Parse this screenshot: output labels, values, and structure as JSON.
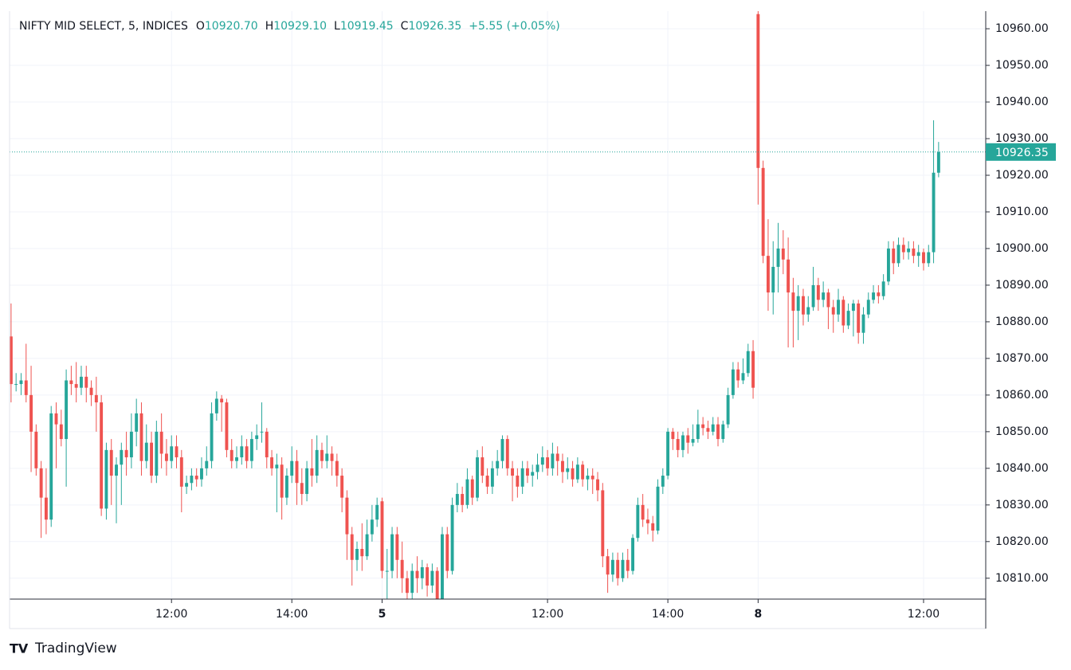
{
  "chart_data": {
    "type": "candlestick",
    "symbol": "NIFTY MID SELECT, 5, INDICES",
    "legend_items": [
      {
        "label": "O",
        "value": "10920.70"
      },
      {
        "label": "H",
        "value": "10929.10"
      },
      {
        "label": "L",
        "value": "10919.45"
      },
      {
        "label": "C",
        "value": "10926.35"
      }
    ],
    "change": "+5.55 (+0.05%)",
    "last_price_label": "10926.35",
    "brand": "TradingView",
    "up_color": "#26a69a",
    "down_color": "#ef5350",
    "xlim": [
      -0.3,
      194.4
    ],
    "xticks": [
      {
        "value": 32,
        "label": "12:00"
      },
      {
        "value": 56,
        "label": "14:00"
      },
      {
        "value": 74,
        "label": "5"
      },
      {
        "value": 107,
        "label": "12:00"
      },
      {
        "value": 131,
        "label": "14:00"
      },
      {
        "value": 149,
        "label": "8"
      },
      {
        "value": 182,
        "label": "12:00"
      }
    ],
    "ylim": [
      10804.3,
      10964.8
    ],
    "yticks": [
      {
        "value": 10810,
        "label": "10810.00"
      },
      {
        "value": 10820,
        "label": "10820.00"
      },
      {
        "value": 10830,
        "label": "10830.00"
      },
      {
        "value": 10840,
        "label": "10840.00"
      },
      {
        "value": 10850,
        "label": "10850.00"
      },
      {
        "value": 10860,
        "label": "10860.00"
      },
      {
        "value": 10870,
        "label": "10870.00"
      },
      {
        "value": 10880,
        "label": "10880.00"
      },
      {
        "value": 10890,
        "label": "10890.00"
      },
      {
        "value": 10900,
        "label": "10900.00"
      },
      {
        "value": 10910,
        "label": "10910.00"
      },
      {
        "value": 10920,
        "label": "10920.00"
      },
      {
        "value": 10930,
        "label": "10930.00"
      },
      {
        "value": 10940,
        "label": "10940.00"
      },
      {
        "value": 10950,
        "label": "10950.00"
      },
      {
        "value": 10960,
        "label": "10960.00"
      }
    ],
    "grid": true,
    "candles": [
      [
        10876,
        10885,
        10858,
        10863
      ],
      [
        10863,
        10866,
        10861,
        10863
      ],
      [
        10863,
        10866,
        10860,
        10864
      ],
      [
        10864,
        10874,
        10858,
        10860
      ],
      [
        10860,
        10868,
        10839,
        10850
      ],
      [
        10850,
        10852,
        10838,
        10840
      ],
      [
        10840,
        10842,
        10821,
        10832
      ],
      [
        10832,
        10840,
        10822,
        10826
      ],
      [
        10826,
        10857,
        10824,
        10855
      ],
      [
        10855,
        10858,
        10840,
        10852
      ],
      [
        10852,
        10856,
        10846,
        10848
      ],
      [
        10848,
        10867,
        10835,
        10864
      ],
      [
        10864,
        10868,
        10860,
        10863
      ],
      [
        10863,
        10869,
        10858,
        10862
      ],
      [
        10862,
        10868,
        10860,
        10865
      ],
      [
        10865,
        10868,
        10858,
        10862
      ],
      [
        10862,
        10864,
        10857,
        10860
      ],
      [
        10860,
        10865,
        10850,
        10858
      ],
      [
        10858,
        10860,
        10827,
        10829
      ],
      [
        10829,
        10847,
        10826,
        10845
      ],
      [
        10845,
        10848,
        10830,
        10838
      ],
      [
        10838,
        10843,
        10825,
        10841
      ],
      [
        10841,
        10847,
        10830,
        10845
      ],
      [
        10845,
        10850,
        10838,
        10843
      ],
      [
        10843,
        10855,
        10840,
        10850
      ],
      [
        10850,
        10859,
        10846,
        10855
      ],
      [
        10855,
        10858,
        10838,
        10842
      ],
      [
        10842,
        10852,
        10840,
        10847
      ],
      [
        10847,
        10850,
        10836,
        10838
      ],
      [
        10838,
        10853,
        10836,
        10850
      ],
      [
        10850,
        10855,
        10840,
        10844
      ],
      [
        10844,
        10848,
        10838,
        10842
      ],
      [
        10842,
        10849,
        10840,
        10846
      ],
      [
        10846,
        10849,
        10840,
        10843
      ],
      [
        10843,
        10845,
        10828,
        10835
      ],
      [
        10835,
        10838,
        10833,
        10836
      ],
      [
        10836,
        10840,
        10834,
        10838
      ],
      [
        10838,
        10840,
        10835,
        10837
      ],
      [
        10837,
        10843,
        10835,
        10840
      ],
      [
        10840,
        10846,
        10838,
        10842
      ],
      [
        10842,
        10858,
        10840,
        10855
      ],
      [
        10855,
        10861,
        10853,
        10859
      ],
      [
        10859,
        10860,
        10850,
        10858
      ],
      [
        10858,
        10859,
        10843,
        10845
      ],
      [
        10845,
        10848,
        10840,
        10842
      ],
      [
        10842,
        10846,
        10840,
        10843
      ],
      [
        10843,
        10849,
        10841,
        10846
      ],
      [
        10846,
        10848,
        10840,
        10842
      ],
      [
        10842,
        10850,
        10840,
        10848
      ],
      [
        10848,
        10852,
        10845,
        10849
      ],
      [
        10850,
        10858,
        10847,
        10850
      ],
      [
        10850,
        10851,
        10840,
        10843
      ],
      [
        10843,
        10845,
        10838,
        10840
      ],
      [
        10840,
        10844,
        10828,
        10841
      ],
      [
        10841,
        10843,
        10826,
        10832
      ],
      [
        10832,
        10840,
        10830,
        10838
      ],
      [
        10838,
        10846,
        10836,
        10842
      ],
      [
        10842,
        10845,
        10830,
        10836
      ],
      [
        10836,
        10840,
        10830,
        10833
      ],
      [
        10833,
        10842,
        10831,
        10840
      ],
      [
        10840,
        10848,
        10835,
        10838
      ],
      [
        10838,
        10849,
        10836,
        10845
      ],
      [
        10845,
        10847,
        10840,
        10842
      ],
      [
        10842,
        10849,
        10840,
        10844
      ],
      [
        10844,
        10846,
        10838,
        10842
      ],
      [
        10842,
        10844,
        10835,
        10838
      ],
      [
        10838,
        10840,
        10828,
        10832
      ],
      [
        10832,
        10834,
        10815,
        10822
      ],
      [
        10822,
        10824,
        10808,
        10815
      ],
      [
        10815,
        10820,
        10812,
        10818
      ],
      [
        10818,
        10825,
        10812,
        10816
      ],
      [
        10816,
        10826,
        10815,
        10822
      ],
      [
        10822,
        10830,
        10820,
        10826
      ],
      [
        10826,
        10832,
        10824,
        10830
      ],
      [
        10831,
        10832,
        10810,
        10812
      ],
      [
        10812,
        10818,
        10804,
        10812
      ],
      [
        10812,
        10824,
        10810,
        10822
      ],
      [
        10822,
        10824,
        10810,
        10815
      ],
      [
        10815,
        10820,
        10806,
        10810
      ],
      [
        10810,
        10812,
        10803,
        10806
      ],
      [
        10806,
        10814,
        10803,
        10812
      ],
      [
        10812,
        10816,
        10806,
        10810
      ],
      [
        10810,
        10815,
        10807,
        10813
      ],
      [
        10813,
        10814,
        10805,
        10808
      ],
      [
        10808,
        10814,
        10806,
        10812
      ],
      [
        10812,
        10813,
        10802,
        10804
      ],
      [
        10804,
        10824,
        10803,
        10822
      ],
      [
        10822,
        10824,
        10810,
        10812
      ],
      [
        10812,
        10832,
        10811,
        10830
      ],
      [
        10830,
        10836,
        10828,
        10833
      ],
      [
        10833,
        10835,
        10828,
        10830
      ],
      [
        10830,
        10840,
        10829,
        10837
      ],
      [
        10837,
        10838,
        10830,
        10832
      ],
      [
        10832,
        10845,
        10831,
        10843
      ],
      [
        10843,
        10846,
        10836,
        10838
      ],
      [
        10838,
        10840,
        10833,
        10835
      ],
      [
        10835,
        10842,
        10833,
        10840
      ],
      [
        10840,
        10845,
        10838,
        10842
      ],
      [
        10842,
        10849,
        10840,
        10848
      ],
      [
        10848,
        10849,
        10838,
        10840
      ],
      [
        10840,
        10842,
        10831,
        10838
      ],
      [
        10838,
        10840,
        10832,
        10835
      ],
      [
        10835,
        10842,
        10833,
        10840
      ],
      [
        10840,
        10842,
        10836,
        10838
      ],
      [
        10838,
        10841,
        10835,
        10839
      ],
      [
        10839,
        10844,
        10837,
        10841
      ],
      [
        10841,
        10846,
        10839,
        10843
      ],
      [
        10843,
        10845,
        10838,
        10840
      ],
      [
        10840,
        10847,
        10838,
        10844
      ],
      [
        10844,
        10846,
        10838,
        10842
      ],
      [
        10842,
        10844,
        10836,
        10839
      ],
      [
        10839,
        10843,
        10837,
        10840
      ],
      [
        10840,
        10842,
        10835,
        10837
      ],
      [
        10837,
        10843,
        10836,
        10841
      ],
      [
        10841,
        10842,
        10835,
        10837
      ],
      [
        10837,
        10840,
        10834,
        10838
      ],
      [
        10838,
        10840,
        10833,
        10837
      ],
      [
        10837,
        10839,
        10831,
        10834
      ],
      [
        10834,
        10836,
        10813,
        10816
      ],
      [
        10816,
        10818,
        10806,
        10811
      ],
      [
        10811,
        10817,
        10809,
        10815
      ],
      [
        10815,
        10817,
        10808,
        10810
      ],
      [
        10810,
        10817,
        10809,
        10815
      ],
      [
        10815,
        10818,
        10810,
        10812
      ],
      [
        10812,
        10822,
        10811,
        10821
      ],
      [
        10821,
        10832,
        10820,
        10830
      ],
      [
        10830,
        10833,
        10824,
        10826
      ],
      [
        10826,
        10829,
        10822,
        10825
      ],
      [
        10825,
        10827,
        10820,
        10823
      ],
      [
        10823,
        10837,
        10822,
        10835
      ],
      [
        10835,
        10840,
        10833,
        10838
      ],
      [
        10838,
        10851,
        10837,
        10850
      ],
      [
        10850,
        10851,
        10845,
        10848
      ],
      [
        10848,
        10850,
        10843,
        10845
      ],
      [
        10845,
        10850,
        10843,
        10849
      ],
      [
        10849,
        10851,
        10844,
        10847
      ],
      [
        10847,
        10852,
        10846,
        10848
      ],
      [
        10848,
        10856,
        10847,
        10852
      ],
      [
        10852,
        10854,
        10849,
        10851
      ],
      [
        10851,
        10853,
        10848,
        10850
      ],
      [
        10850,
        10854,
        10849,
        10852
      ],
      [
        10852,
        10854,
        10846,
        10848
      ],
      [
        10848,
        10853,
        10847,
        10852
      ],
      [
        10852,
        10862,
        10851,
        10860
      ],
      [
        10860,
        10869,
        10859,
        10867
      ],
      [
        10867,
        10869,
        10862,
        10864
      ],
      [
        10864,
        10870,
        10863,
        10866
      ],
      [
        10866,
        10874,
        10865,
        10872
      ],
      [
        10872,
        10875,
        10859,
        10862
      ],
      [
        10964,
        10965,
        10912,
        10922
      ],
      [
        10922,
        10924,
        10896,
        10898
      ],
      [
        10898,
        10908,
        10883,
        10888
      ],
      [
        10888,
        10902,
        10882,
        10895
      ],
      [
        10895,
        10907,
        10888,
        10900
      ],
      [
        10900,
        10905,
        10893,
        10897
      ],
      [
        10897,
        10903,
        10873,
        10888
      ],
      [
        10888,
        10892,
        10873,
        10883
      ],
      [
        10883,
        10890,
        10875,
        10887
      ],
      [
        10887,
        10889,
        10879,
        10882
      ],
      [
        10882,
        10887,
        10880,
        10884
      ],
      [
        10884,
        10895,
        10883,
        10890
      ],
      [
        10890,
        10892,
        10883,
        10886
      ],
      [
        10886,
        10891,
        10884,
        10888
      ],
      [
        10888,
        10889,
        10878,
        10884
      ],
      [
        10884,
        10886,
        10877,
        10882
      ],
      [
        10882,
        10889,
        10880,
        10886
      ],
      [
        10886,
        10887,
        10877,
        10879
      ],
      [
        10879,
        10885,
        10878,
        10883
      ],
      [
        10883,
        10886,
        10876,
        10885
      ],
      [
        10885,
        10886,
        10874,
        10877
      ],
      [
        10877,
        10884,
        10874,
        10882
      ],
      [
        10882,
        10888,
        10881,
        10886
      ],
      [
        10886,
        10890,
        10885,
        10888
      ],
      [
        10888,
        10890,
        10885,
        10887
      ],
      [
        10887,
        10893,
        10886,
        10891
      ],
      [
        10891,
        10902,
        10890,
        10900
      ],
      [
        10900,
        10902,
        10893,
        10896
      ],
      [
        10896,
        10903,
        10895,
        10901
      ],
      [
        10901,
        10903,
        10897,
        10899
      ],
      [
        10899,
        10902,
        10897,
        10900
      ],
      [
        10900,
        10902,
        10896,
        10898
      ],
      [
        10898,
        10901,
        10895,
        10899
      ],
      [
        10899,
        10900,
        10894,
        10896
      ],
      [
        10896,
        10901,
        10895,
        10899
      ],
      [
        10899,
        10935,
        10896,
        10920.7
      ],
      [
        10920.7,
        10929.1,
        10919.45,
        10926.35
      ]
    ]
  }
}
